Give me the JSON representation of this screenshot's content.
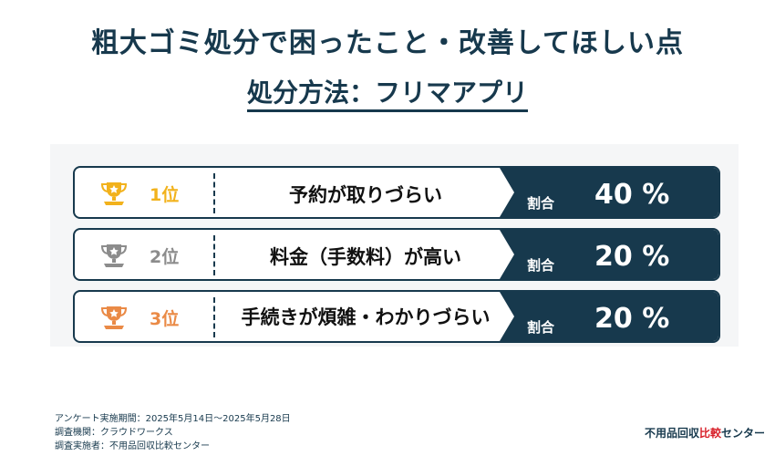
{
  "header": {
    "title": "粗大ゴミ処分で困ったこと・改善してほしい点",
    "subtitle": "処分方法：フリマアプリ"
  },
  "chart_data": {
    "type": "table",
    "rows": [
      {
        "rank_label": "1位",
        "reason": "予約が取りづらい",
        "share_label": "割合",
        "share_display": "40 %",
        "share": 40,
        "medal_color": "#f2b21c"
      },
      {
        "rank_label": "2位",
        "reason": "料金（手数料）が高い",
        "share_label": "割合",
        "share_display": "20 %",
        "share": 20,
        "medal_color": "#8c8c8c"
      },
      {
        "rank_label": "3位",
        "reason": "手続きが煩雑・わかりづらい",
        "share_label": "割合",
        "share_display": "20 %",
        "share": 20,
        "medal_color": "#ea8a46"
      }
    ]
  },
  "footer": {
    "survey_period": "アンケート実施期間：2025年5月14日〜2025年5月28日",
    "survey_org": "調査機関：クラウドワークス",
    "survey_conductor": "調査実施者：不用品回収比較センター"
  },
  "logo": {
    "part1": "不用品回収",
    "part2": "比較",
    "part3": "センター"
  },
  "colors": {
    "navy": "#17394d",
    "accent_red": "#d8202a"
  }
}
